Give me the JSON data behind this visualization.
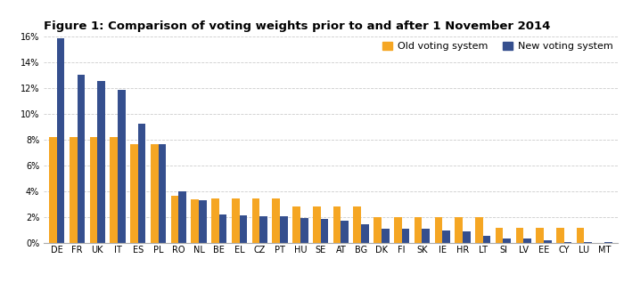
{
  "title": "Figure 1: Comparison of voting weights prior to and after 1 November 2014",
  "categories": [
    "DE",
    "FR",
    "UK",
    "IT",
    "ES",
    "PL",
    "RO",
    "NL",
    "BE",
    "EL",
    "CZ",
    "PT",
    "HU",
    "SE",
    "AT",
    "BG",
    "DK",
    "FI",
    "SK",
    "IE",
    "HR",
    "LT",
    "SI",
    "LV",
    "EE",
    "CY",
    "LU",
    "MT"
  ],
  "old_values": [
    0.0826,
    0.0826,
    0.0826,
    0.0826,
    0.0767,
    0.0767,
    0.0368,
    0.0338,
    0.0346,
    0.0346,
    0.0346,
    0.0346,
    0.0285,
    0.0285,
    0.0285,
    0.0285,
    0.0204,
    0.0204,
    0.0204,
    0.0204,
    0.0204,
    0.0204,
    0.0118,
    0.0118,
    0.0118,
    0.0118,
    0.0118,
    0.0
  ],
  "new_values": [
    0.1587,
    0.1306,
    0.1258,
    0.1187,
    0.0926,
    0.0765,
    0.04,
    0.0332,
    0.0222,
    0.0217,
    0.0212,
    0.0207,
    0.0197,
    0.0191,
    0.0174,
    0.0147,
    0.0112,
    0.0112,
    0.0112,
    0.0097,
    0.009,
    0.0056,
    0.0037,
    0.0037,
    0.0027,
    0.0012,
    0.0012,
    0.0009
  ],
  "old_color": "#F5A623",
  "new_color": "#354F8E",
  "legend_old": "Old voting system",
  "legend_new": "New voting system",
  "ylim": [
    0,
    0.16
  ],
  "ytick_labels": [
    "0%",
    "2%",
    "4%",
    "6%",
    "8%",
    "10%",
    "12%",
    "14%",
    "16%"
  ],
  "ytick_values": [
    0.0,
    0.02,
    0.04,
    0.06,
    0.08,
    0.1,
    0.12,
    0.14,
    0.16
  ],
  "background_color": "#FFFFFF",
  "grid_color": "#CCCCCC",
  "bar_width": 0.38,
  "title_fontsize": 9.5,
  "tick_fontsize": 7,
  "legend_fontsize": 8
}
